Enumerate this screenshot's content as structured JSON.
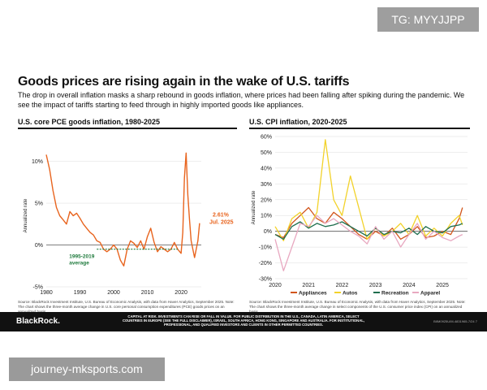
{
  "watermark_top": "TG: MYYJJPP",
  "watermark_bottom": "journey-mksports.com",
  "headline": "Goods prices are rising again in the wake of U.S. tariffs",
  "subtitle": "The drop in overall inflation masks a sharp rebound in goods inflation, where prices had been falling after spiking during the pandemic. We see the impact of tariffs starting to feed through in highly imported goods like appliances.",
  "footer": {
    "brand": "BlackRock.",
    "disclaimer": "CAPITAL AT RISK. INVESTMENTS CAN RISE OR FALL IN VALUE. FOR PUBLIC DISTRIBUTION IN THE U.S., CANADA, LATIN AMERICA, SELECT COUNTRIES IN EUROPE (SEE THE FULL DISCLAIMER), ISRAEL, SOUTH AFRICA, HONG KONG, SINGAPORE AND AUSTRALIA. FOR INSTITUTIONAL, PROFESSIONAL, AND QUALIFIED INVESTORS AND CLIENTS IN OTHER PERMITTED COUNTRIES.",
    "code": "BIIM0925U/M-4831965-7/24",
    "page": "7"
  },
  "colors": {
    "pce": "#e8641e",
    "avg": "#1e7a3c",
    "appliances": "#d2561c",
    "autos": "#f2d22a",
    "recreation": "#1e6e4e",
    "apparel": "#e8a8c0"
  },
  "chart_data": [
    {
      "type": "line",
      "title": "U.S. core PCE goods inflation, 1980-2025",
      "ylabel": "Annualized rate",
      "ylim": [
        -5,
        12
      ],
      "yticks": [
        -5,
        0,
        5,
        10
      ],
      "ytick_labels": [
        "-5%",
        "0%",
        "5%",
        "10%"
      ],
      "xlim": [
        1980,
        2026
      ],
      "xticks": [
        1980,
        1990,
        2000,
        2010,
        2020
      ],
      "xtick_labels": [
        "1980",
        "1990",
        "2000",
        "2010",
        "2020"
      ],
      "series": [
        {
          "name": "Core PCE goods inflation",
          "x": [
            1980,
            1981,
            1982,
            1983,
            1984,
            1985,
            1986,
            1987,
            1988,
            1989,
            1990,
            1991,
            1992,
            1993,
            1994,
            1995,
            1996,
            1997,
            1998,
            1999,
            2000,
            2001,
            2002,
            2003,
            2004,
            2005,
            2006,
            2007,
            2008,
            2009,
            2010,
            2011,
            2012,
            2013,
            2014,
            2015,
            2016,
            2017,
            2018,
            2019,
            2020,
            2020.5,
            2021,
            2021.5,
            2022,
            2022.5,
            2023,
            2024,
            2025,
            2025.5
          ],
          "values": [
            10.8,
            9,
            6.5,
            4.5,
            3.5,
            3,
            2.5,
            4,
            3.5,
            3.8,
            3.2,
            2.5,
            2,
            1.5,
            1.2,
            0.5,
            0.3,
            -0.5,
            -0.8,
            -0.5,
            0,
            -0.5,
            -1.8,
            -2.5,
            -0.5,
            0.5,
            0.2,
            -0.3,
            0.5,
            -0.5,
            1,
            2,
            0.3,
            -0.8,
            -0.2,
            -0.5,
            -0.8,
            -0.5,
            0.3,
            -0.5,
            -1,
            1.5,
            8,
            11,
            6,
            3,
            0.5,
            -1.5,
            0.5,
            2.61
          ]
        },
        {
          "name": "1995-2019 average",
          "x": [
            1995,
            2019
          ],
          "values": [
            -0.5,
            -0.5
          ]
        }
      ],
      "annotations": [
        {
          "text": "2.61%",
          "x": 2025.5,
          "y": 2.61
        },
        {
          "text": "Jul. 2025",
          "x": 2025.5,
          "y": 2.61
        },
        {
          "text": "1995-2019",
          "x": 1995,
          "y": -0.5
        },
        {
          "text": "average",
          "x": 1995,
          "y": -0.5
        }
      ],
      "source": "Source: BlackRock Investment Institute, U.S. Bureau of Economic Analysis, with data from Haver Analytics, September 2025. Note: The chart shows the three-month average change in U.S. core personal consumption expenditures (PCE) goods prices on an annualized basis."
    },
    {
      "type": "line",
      "title": "U.S. CPI inflation, 2020-2025",
      "ylabel": "Annualized rate",
      "ylim": [
        -30,
        60
      ],
      "yticks": [
        -30,
        -20,
        -10,
        0,
        10,
        20,
        30,
        40,
        50,
        60
      ],
      "ytick_labels": [
        "-30%",
        "-20%",
        "-10%",
        "0%",
        "10%",
        "20%",
        "30%",
        "40%",
        "50%",
        "60%"
      ],
      "xlim": [
        2020,
        2025.75
      ],
      "xticks": [
        2020,
        2021,
        2022,
        2023,
        2024,
        2025
      ],
      "xtick_labels": [
        "2020",
        "2021",
        "2022",
        "2023",
        "2024",
        "2025"
      ],
      "x": [
        2020,
        2020.25,
        2020.5,
        2020.75,
        2021,
        2021.25,
        2021.5,
        2021.75,
        2022,
        2022.25,
        2022.5,
        2022.75,
        2023,
        2023.25,
        2023.5,
        2023.75,
        2024,
        2024.25,
        2024.5,
        2024.75,
        2025,
        2025.25,
        2025.5,
        2025.6
      ],
      "series": [
        {
          "name": "Appliances",
          "values": [
            -2,
            -4,
            5,
            10,
            15,
            8,
            5,
            12,
            8,
            3,
            -2,
            -5,
            0,
            -3,
            2,
            -5,
            -2,
            3,
            -4,
            -3,
            0,
            -2,
            8,
            15
          ]
        },
        {
          "name": "Autos",
          "values": [
            3,
            -6,
            8,
            12,
            2,
            12,
            58,
            20,
            10,
            35,
            15,
            -5,
            2,
            -3,
            0,
            5,
            -2,
            10,
            -3,
            2,
            -3,
            5,
            10,
            4
          ]
        },
        {
          "name": "Recreation",
          "values": [
            -2,
            -5,
            3,
            6,
            2,
            5,
            3,
            4,
            6,
            3,
            0,
            -3,
            2,
            -2,
            0,
            -1,
            2,
            -2,
            3,
            0,
            -1,
            3,
            4,
            5
          ]
        },
        {
          "name": "Apparel",
          "values": [
            -5,
            -25,
            -10,
            5,
            3,
            10,
            5,
            8,
            4,
            0,
            -3,
            -8,
            3,
            -5,
            0,
            -10,
            -2,
            5,
            -5,
            0,
            -4,
            -6,
            -3,
            -2
          ]
        }
      ],
      "legend": [
        "Appliances",
        "Autos",
        "Recreation",
        "Apparel"
      ],
      "source": "Source: BlackRock Investment Institute, U.S. Bureau of Economic Analysis, with data from Haver Analytics, September 2025. Note: The chart shows the three-month average change in select components of the U.S. consumer price index (CPI) on an annualized basis."
    }
  ]
}
